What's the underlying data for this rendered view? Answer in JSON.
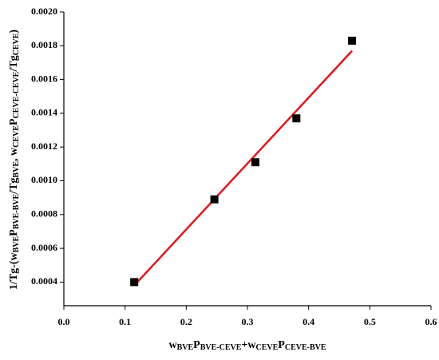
{
  "chart_data": {
    "type": "scatter",
    "xlabel": [
      {
        "text": "w"
      },
      {
        "text": "BVE",
        "sub": true
      },
      {
        "text": "P"
      },
      {
        "text": "BVE-CEVE",
        "sub": true
      },
      {
        "text": "+w"
      },
      {
        "text": "CEVE",
        "sub": true
      },
      {
        "text": "P"
      },
      {
        "text": "CEVE-BVE",
        "sub": true
      }
    ],
    "ylabel": [
      {
        "text": "1/Tg-(w"
      },
      {
        "text": "BVE",
        "sub": true
      },
      {
        "text": "P"
      },
      {
        "text": "BVE-BVE",
        "sub": true
      },
      {
        "text": "/Tg"
      },
      {
        "text": "BVE",
        "sub": true
      },
      {
        "text": ", w"
      },
      {
        "text": "CEVE",
        "sub": true
      },
      {
        "text": "P"
      },
      {
        "text": "CEVE-CEVE",
        "sub": true
      },
      {
        "text": "/Tg"
      },
      {
        "text": "CEVE",
        "sub": true
      },
      {
        "text": ")"
      }
    ],
    "points": {
      "color": "#000000",
      "x": [
        0.115,
        0.246,
        0.313,
        0.38,
        0.471
      ],
      "values": [
        0.0004,
        0.00089,
        0.00111,
        0.00137,
        0.00183
      ]
    },
    "fit": {
      "color": "#e8141b",
      "x": [
        0.115,
        0.471
      ],
      "values": [
        0.00038,
        0.00177
      ]
    },
    "xlim": [
      0,
      0.6
    ],
    "ylim": [
      0.00026,
      0.002
    ],
    "xticks": [
      {
        "value": 0,
        "label": "0.0"
      },
      0.1,
      0.2,
      0.3,
      0.4,
      0.5,
      0.6
    ],
    "yticks": [
      0.0004,
      0.0006,
      0.0008,
      {
        "value": 0.001,
        "label": "0.0010"
      },
      0.0012,
      0.0014,
      0.0016,
      0.0018,
      {
        "value": 0.002,
        "label": "0.0020"
      }
    ]
  }
}
